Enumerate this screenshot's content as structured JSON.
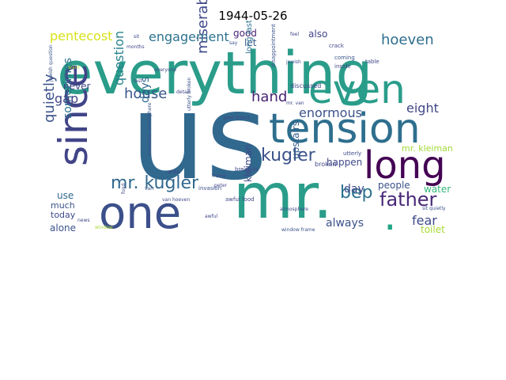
{
  "chart_data": {
    "type": "wordcloud",
    "title": "1944-05-26",
    "words": [
      {
        "text": "us",
        "color": "#31688e"
      },
      {
        "text": "everything",
        "color": "#2a9d8a"
      },
      {
        "text": "mr.",
        "color": "#2a9d8a"
      },
      {
        "text": "one",
        "color": "#3b4f8a"
      },
      {
        "text": "tension",
        "color": "#2e6e8e"
      },
      {
        "text": "since",
        "color": "#414487"
      },
      {
        "text": "even",
        "color": "#2a9d8a"
      },
      {
        "text": "long",
        "color": "#440154"
      },
      {
        "text": ".",
        "color": "#22a784"
      },
      {
        "text": "mr. kugler",
        "color": "#31688e"
      },
      {
        "text": "kugler",
        "color": "#3b528b"
      },
      {
        "text": "father",
        "color": "#482878"
      },
      {
        "text": "bep",
        "color": "#2c728e"
      },
      {
        "text": "miserable",
        "color": "#3e4a89"
      },
      {
        "text": "question",
        "color": "#26828e"
      },
      {
        "text": "quietly",
        "color": "#3b528b"
      },
      {
        "text": "house",
        "color": "#39568c"
      },
      {
        "text": "engagement",
        "color": "#2c728e"
      },
      {
        "text": "pentecost",
        "color": "#d8e219"
      },
      {
        "text": "hoeven",
        "color": "#2e6e8e"
      },
      {
        "text": "enormous",
        "color": "#3b528b"
      },
      {
        "text": "hand",
        "color": "#482475"
      },
      {
        "text": "sometimes",
        "color": "#2c728e"
      },
      {
        "text": "days",
        "color": "#31688e"
      },
      {
        "text": "gap",
        "color": "#404688"
      },
      {
        "text": "eight",
        "color": "#404688"
      },
      {
        "text": "day",
        "color": "#3e4989"
      },
      {
        "text": "always",
        "color": "#3b528b"
      },
      {
        "text": "fear",
        "color": "#3e4989"
      },
      {
        "text": "never",
        "color": "#404688"
      },
      {
        "text": "happen",
        "color": "#3e4989"
      },
      {
        "text": "people",
        "color": "#3b528b"
      },
      {
        "text": "water",
        "color": "#35b779"
      },
      {
        "text": "upstairs",
        "color": "#355f8d"
      },
      {
        "text": "kleiman",
        "color": "#3e4a89"
      },
      {
        "text": "mr. kleiman",
        "color": "#a2da37"
      },
      {
        "text": "good",
        "color": "#482475"
      },
      {
        "text": "also",
        "color": "#404688"
      },
      {
        "text": "let",
        "color": "#38588c"
      },
      {
        "text": "long last",
        "color": "#2c728e"
      },
      {
        "text": "use",
        "color": "#31688e"
      },
      {
        "text": "much",
        "color": "#3b528b"
      },
      {
        "text": "today",
        "color": "#3e4a89"
      },
      {
        "text": "alone",
        "color": "#3b528b"
      },
      {
        "text": "toilet",
        "color": "#a8db34"
      },
      {
        "text": "discussed",
        "color": "#404688"
      },
      {
        "text": "broken",
        "color": "#414487"
      },
      {
        "text": "disappointment",
        "color": "#3b528b"
      },
      {
        "text": "break-in",
        "color": "#404688"
      },
      {
        "text": "invasion",
        "color": "#3b528b"
      },
      {
        "text": "awful food",
        "color": "#404688"
      },
      {
        "text": "one hand",
        "color": "#3e4989"
      },
      {
        "text": "crack",
        "color": "#404688"
      },
      {
        "text": "coming",
        "color": "#3b528b"
      },
      {
        "text": "inside",
        "color": "#404688"
      },
      {
        "text": "table",
        "color": "#404688"
      },
      {
        "text": "utterly",
        "color": "#3e4989"
      },
      {
        "text": "sit quietly",
        "color": "#3b528b"
      },
      {
        "text": "atmosphere",
        "color": "#3e4989"
      },
      {
        "text": "window frame",
        "color": "#3b528b"
      },
      {
        "text": "feel",
        "color": "#404688"
      },
      {
        "text": "say",
        "color": "#3b528b"
      },
      {
        "text": "sit",
        "color": "#3e4989"
      },
      {
        "text": "jewish",
        "color": "#3b528b"
      },
      {
        "text": "jewish question",
        "color": "#3b528b"
      },
      {
        "text": "months",
        "color": "#404688"
      },
      {
        "text": "want",
        "color": "#a8db34"
      },
      {
        "text": "everyone",
        "color": "#3e4989"
      },
      {
        "text": "last",
        "color": "#404688"
      },
      {
        "text": "detail",
        "color": "#404688"
      },
      {
        "text": "utterly broken",
        "color": "#3b528b"
      },
      {
        "text": "miserable atmosphere",
        "color": "#3b528b"
      },
      {
        "text": "write",
        "color": "#404688"
      },
      {
        "text": "food",
        "color": "#404688"
      },
      {
        "text": "van",
        "color": "#3b528b"
      },
      {
        "text": "van hoeven",
        "color": "#404688"
      },
      {
        "text": "frame",
        "color": "#3e4989"
      },
      {
        "text": "peter",
        "color": "#404688"
      },
      {
        "text": "awful",
        "color": "#404688"
      },
      {
        "text": "news",
        "color": "#3e4989"
      },
      {
        "text": "window",
        "color": "#a8db34"
      },
      {
        "text": "mr. van",
        "color": "#404688"
      }
    ]
  }
}
